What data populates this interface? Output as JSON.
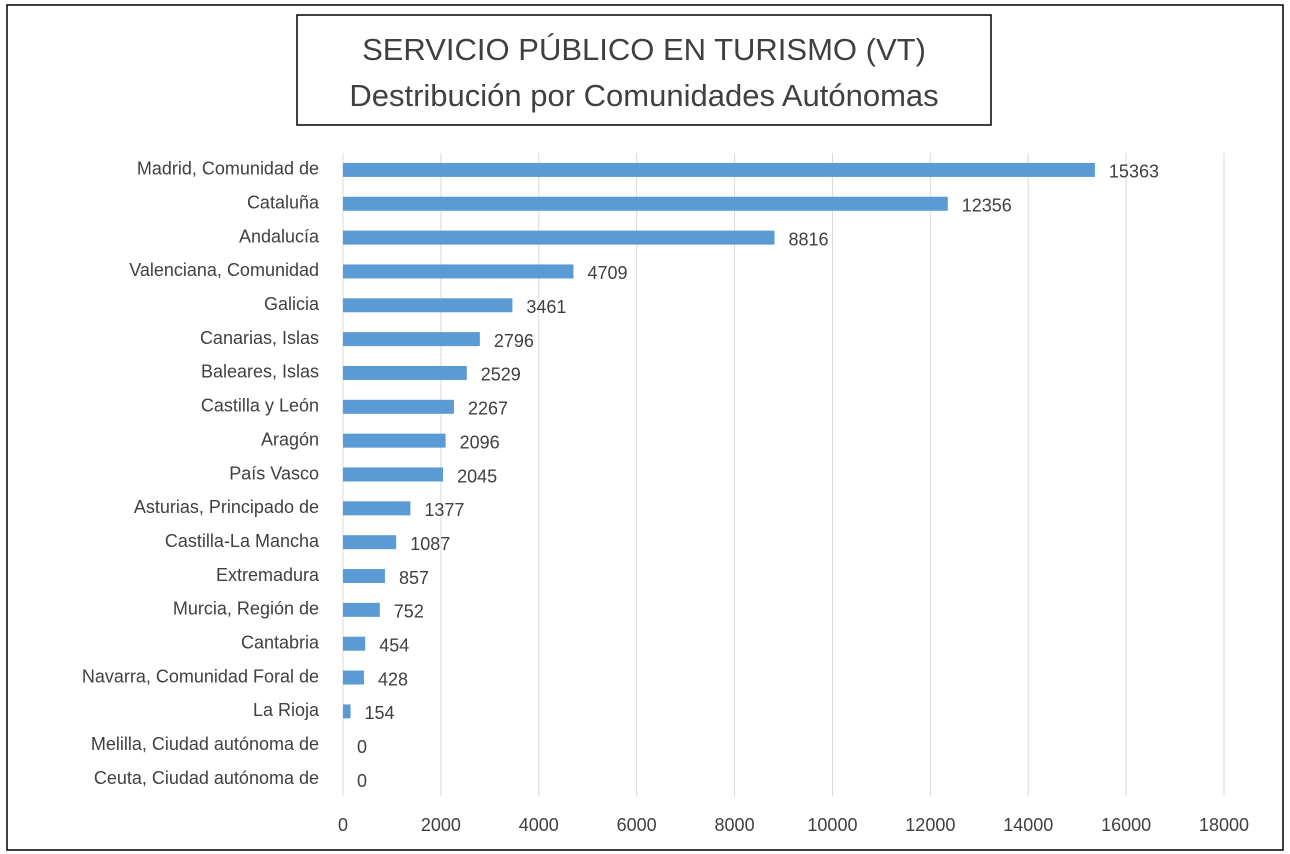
{
  "chart_data": {
    "type": "bar",
    "orientation": "horizontal",
    "title": [
      "SERVICIO PÚBLICO EN TURISMO (VT)",
      "Destribución por Comunidades Autónomas"
    ],
    "categories": [
      "Madrid, Comunidad de",
      "Cataluña",
      "Andalucía",
      "Valenciana, Comunidad",
      "Galicia",
      "Canarias, Islas",
      "Baleares, Islas",
      "Castilla y León",
      "Aragón",
      "País Vasco",
      "Asturias, Principado de",
      "Castilla-La Mancha",
      "Extremadura",
      "Murcia, Región de",
      "Cantabria",
      "Navarra, Comunidad Foral de",
      "La Rioja",
      "Melilla, Ciudad autónoma de",
      "Ceuta, Ciudad autónoma de"
    ],
    "values": [
      15363,
      12356,
      8816,
      4709,
      3461,
      2796,
      2529,
      2267,
      2096,
      2045,
      1377,
      1087,
      857,
      752,
      454,
      428,
      154,
      0,
      0
    ],
    "color": "#5b9bd5",
    "xlim": [
      0,
      18000
    ],
    "xticks": [
      0,
      2000,
      4000,
      6000,
      8000,
      10000,
      12000,
      14000,
      16000,
      18000
    ],
    "grid": true
  }
}
